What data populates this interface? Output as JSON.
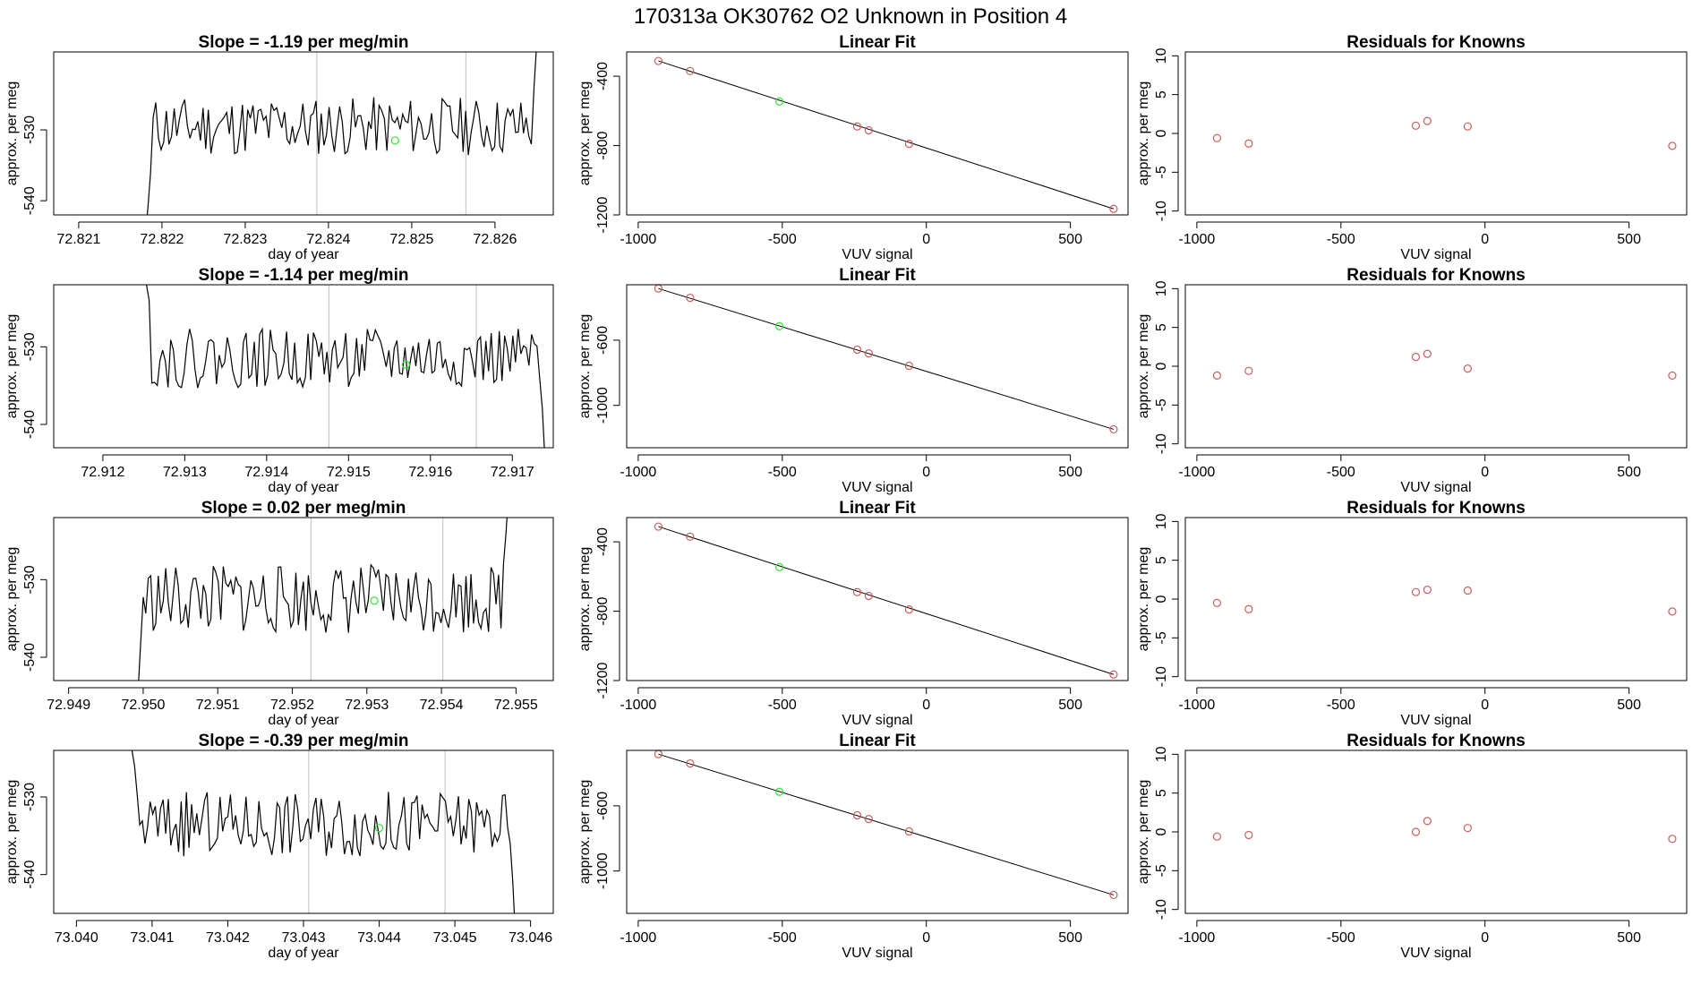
{
  "figure": {
    "title": "170313a      OK30762    O2 Unknown in Position  4",
    "colors": {
      "line": "#000000",
      "known_points": "#CD5C5C",
      "unknown_point": "#32E632",
      "vline": "#BEBEBE",
      "fit_line": "#000000"
    }
  },
  "chart_data": [
    {
      "panel": "row1-timeseries",
      "type": "line",
      "title": "Slope =  -1.19  per meg/min",
      "xlabel": "day of year",
      "ylabel": "approx. per meg",
      "xlim": [
        72.8207,
        72.8267
      ],
      "ylim": [
        -542,
        -519
      ],
      "xticks": [
        72.821,
        72.822,
        72.823,
        72.824,
        72.825,
        72.826
      ],
      "xtick_labels": [
        "72.821",
        "72.822",
        "72.823",
        "72.824",
        "72.825",
        "72.826"
      ],
      "yticks": [
        -540,
        -530
      ],
      "ytick_labels": [
        "-540",
        "-530"
      ],
      "t_start": 72.8218,
      "t_end": 72.8265,
      "level": -529.5,
      "noise": 2.6,
      "seed": 11,
      "ramp_start": [
        -545,
        -541,
        -536
      ],
      "ramp_end": [
        -532,
        -524,
        -518
      ],
      "vlines": [
        72.82386,
        72.82565
      ],
      "unknown_point": {
        "x": 72.8248,
        "y": -531.5
      }
    },
    {
      "panel": "row1-fit",
      "type": "scatter",
      "title": "Linear Fit",
      "xlabel": "VUV signal",
      "ylabel": "approx. per meg",
      "xlim": [
        -1040,
        700
      ],
      "ylim": [
        -1200,
        -260
      ],
      "xticks": [
        -1000,
        -500,
        0,
        500
      ],
      "xtick_labels": [
        "-1000",
        "-500",
        "0",
        "500"
      ],
      "yticks": [
        -1200,
        -800,
        -400
      ],
      "ytick_labels": [
        "-1200",
        "-800",
        "-400"
      ],
      "known_points": [
        {
          "x": -930,
          "y": -312
        },
        {
          "x": -820,
          "y": -370
        },
        {
          "x": -240,
          "y": -690
        },
        {
          "x": -200,
          "y": -712
        },
        {
          "x": -60,
          "y": -790
        },
        {
          "x": 650,
          "y": -1165
        }
      ],
      "unknown_point": {
        "x": -510,
        "y": -546
      },
      "fit_line": {
        "x": [
          -930,
          650
        ],
        "y": [
          -312,
          -1165
        ]
      }
    },
    {
      "panel": "row1-residuals",
      "type": "scatter",
      "title": "Residuals for Knowns",
      "xlabel": "VUV signal",
      "ylabel": "approx. per meg",
      "xlim": [
        -1040,
        700
      ],
      "ylim": [
        -10.5,
        10.5
      ],
      "xticks": [
        -1000,
        -500,
        0,
        500
      ],
      "xtick_labels": [
        "-1000",
        "-500",
        "0",
        "500"
      ],
      "yticks": [
        -10,
        -5,
        0,
        5,
        10
      ],
      "ytick_labels": [
        "-10",
        "-5",
        "0",
        "5",
        "10"
      ],
      "known_points": [
        {
          "x": -930,
          "y": -0.6
        },
        {
          "x": -820,
          "y": -1.3
        },
        {
          "x": -240,
          "y": 1.0
        },
        {
          "x": -200,
          "y": 1.6
        },
        {
          "x": -60,
          "y": 0.9
        },
        {
          "x": 650,
          "y": -1.6
        }
      ]
    },
    {
      "panel": "row2-timeseries",
      "type": "line",
      "title": "Slope =  -1.14  per meg/min",
      "xlabel": "day of year",
      "ylabel": "approx. per meg",
      "xlim": [
        72.9114,
        72.9175
      ],
      "ylim": [
        -543,
        -522
      ],
      "xticks": [
        72.912,
        72.913,
        72.914,
        72.915,
        72.916,
        72.917
      ],
      "xtick_labels": [
        "72.912",
        "72.913",
        "72.914",
        "72.915",
        "72.916",
        "72.917"
      ],
      "yticks": [
        -540,
        -530
      ],
      "ytick_labels": [
        "-540",
        "-530"
      ],
      "t_start": 72.9125,
      "t_end": 72.9174,
      "level": -531.5,
      "noise": 2.4,
      "seed": 22,
      "ramp_start": [
        -520,
        -522,
        -524
      ],
      "ramp_end": [
        -534,
        -538,
        -545
      ],
      "vlines": [
        72.91476,
        72.91656
      ],
      "unknown_point": {
        "x": 72.9157,
        "y": -532.3
      }
    },
    {
      "panel": "row2-fit",
      "type": "scatter",
      "title": "Linear Fit",
      "xlabel": "VUV signal",
      "ylabel": "approx. per meg",
      "xlim": [
        -1040,
        700
      ],
      "ylim": [
        -1260,
        -260
      ],
      "xticks": [
        -1000,
        -500,
        0,
        500
      ],
      "xtick_labels": [
        "-1000",
        "-500",
        "0",
        "500"
      ],
      "yticks": [
        -1000,
        -600
      ],
      "ytick_labels": [
        "-1000",
        "-600"
      ],
      "known_points": [
        {
          "x": -930,
          "y": -283
        },
        {
          "x": -820,
          "y": -340
        },
        {
          "x": -240,
          "y": -658
        },
        {
          "x": -200,
          "y": -681
        },
        {
          "x": -60,
          "y": -757
        },
        {
          "x": 650,
          "y": -1147
        }
      ],
      "unknown_point": {
        "x": -510,
        "y": -514
      },
      "fit_line": {
        "x": [
          -930,
          650
        ],
        "y": [
          -283,
          -1147
        ]
      }
    },
    {
      "panel": "row2-residuals",
      "type": "scatter",
      "title": "Residuals for Knowns",
      "xlabel": "VUV signal",
      "ylabel": "approx. per meg",
      "xlim": [
        -1040,
        700
      ],
      "ylim": [
        -10.5,
        10.5
      ],
      "xticks": [
        -1000,
        -500,
        0,
        500
      ],
      "xtick_labels": [
        "-1000",
        "-500",
        "0",
        "500"
      ],
      "yticks": [
        -10,
        -5,
        0,
        5,
        10
      ],
      "ytick_labels": [
        "-10",
        "-5",
        "0",
        "5",
        "10"
      ],
      "known_points": [
        {
          "x": -930,
          "y": -1.2
        },
        {
          "x": -820,
          "y": -0.6
        },
        {
          "x": -240,
          "y": 1.2
        },
        {
          "x": -200,
          "y": 1.6
        },
        {
          "x": -60,
          "y": -0.3
        },
        {
          "x": 650,
          "y": -1.2
        }
      ]
    },
    {
      "panel": "row3-timeseries",
      "type": "line",
      "title": "Slope =  0.02  per meg/min",
      "xlabel": "day of year",
      "ylabel": "approx. per meg",
      "xlim": [
        72.9488,
        72.9555
      ],
      "ylim": [
        -543,
        -522
      ],
      "xticks": [
        72.949,
        72.95,
        72.951,
        72.952,
        72.953,
        72.954,
        72.955
      ],
      "xtick_labels": [
        "72.949",
        "72.950",
        "72.951",
        "72.952",
        "72.953",
        "72.954",
        "72.955"
      ],
      "yticks": [
        -540,
        -530
      ],
      "ytick_labels": [
        "-540",
        "-530"
      ],
      "t_start": 72.9499,
      "t_end": 72.9549,
      "level": -532.5,
      "noise": 2.8,
      "seed": 33,
      "ramp_start": [
        -546,
        -544,
        -538
      ],
      "ramp_end": [
        -528,
        -524,
        -519
      ],
      "vlines": [
        72.95225,
        72.95402
      ],
      "unknown_point": {
        "x": 72.9531,
        "y": -532.7
      }
    },
    {
      "panel": "row3-fit",
      "type": "scatter",
      "title": "Linear Fit",
      "xlabel": "VUV signal",
      "ylabel": "approx. per meg",
      "xlim": [
        -1040,
        700
      ],
      "ylim": [
        -1200,
        -260
      ],
      "xticks": [
        -1000,
        -500,
        0,
        500
      ],
      "xtick_labels": [
        "-1000",
        "-500",
        "0",
        "500"
      ],
      "yticks": [
        -1200,
        -800,
        -400
      ],
      "ytick_labels": [
        "-1200",
        "-800",
        "-400"
      ],
      "known_points": [
        {
          "x": -930,
          "y": -312
        },
        {
          "x": -820,
          "y": -370
        },
        {
          "x": -240,
          "y": -690
        },
        {
          "x": -200,
          "y": -712
        },
        {
          "x": -60,
          "y": -790
        },
        {
          "x": 650,
          "y": -1165
        }
      ],
      "unknown_point": {
        "x": -510,
        "y": -546
      },
      "fit_line": {
        "x": [
          -930,
          650
        ],
        "y": [
          -312,
          -1165
        ]
      }
    },
    {
      "panel": "row3-residuals",
      "type": "scatter",
      "title": "Residuals for Knowns",
      "xlabel": "VUV signal",
      "ylabel": "approx. per meg",
      "xlim": [
        -1040,
        700
      ],
      "ylim": [
        -10.5,
        10.5
      ],
      "xticks": [
        -1000,
        -500,
        0,
        500
      ],
      "xtick_labels": [
        "-1000",
        "-500",
        "0",
        "500"
      ],
      "yticks": [
        -10,
        -5,
        0,
        5,
        10
      ],
      "ytick_labels": [
        "-10",
        "-5",
        "0",
        "5",
        "10"
      ],
      "known_points": [
        {
          "x": -930,
          "y": -0.5
        },
        {
          "x": -820,
          "y": -1.3
        },
        {
          "x": -240,
          "y": 0.9
        },
        {
          "x": -200,
          "y": 1.2
        },
        {
          "x": -60,
          "y": 1.1
        },
        {
          "x": 650,
          "y": -1.6
        }
      ]
    },
    {
      "panel": "row4-timeseries",
      "type": "line",
      "title": "Slope =  -0.39  per meg/min",
      "xlabel": "day of year",
      "ylabel": "approx. per meg",
      "xlim": [
        73.0397,
        73.0463
      ],
      "ylim": [
        -545,
        -524
      ],
      "xticks": [
        73.04,
        73.041,
        73.042,
        73.043,
        73.044,
        73.045,
        73.046
      ],
      "xtick_labels": [
        "73.040",
        "73.041",
        "73.042",
        "73.043",
        "73.044",
        "73.045",
        "73.046"
      ],
      "yticks": [
        -540,
        -530
      ],
      "ytick_labels": [
        "-540",
        "-530"
      ],
      "t_start": 73.0407,
      "t_end": 73.0458,
      "level": -533.5,
      "noise": 2.6,
      "seed": 44,
      "ramp_start": [
        -522,
        -524,
        -526
      ],
      "ramp_end": [
        -536,
        -541,
        -548
      ],
      "vlines": [
        73.04307,
        73.04487
      ],
      "unknown_point": {
        "x": 73.044,
        "y": -534.0
      }
    },
    {
      "panel": "row4-fit",
      "type": "scatter",
      "title": "Linear Fit",
      "xlabel": "VUV signal",
      "ylabel": "approx. per meg",
      "xlim": [
        -1040,
        700
      ],
      "ylim": [
        -1260,
        -260
      ],
      "xticks": [
        -1000,
        -500,
        0,
        500
      ],
      "xtick_labels": [
        "-1000",
        "-500",
        "0",
        "500"
      ],
      "yticks": [
        -1000,
        -600
      ],
      "ytick_labels": [
        "-1000",
        "-600"
      ],
      "known_points": [
        {
          "x": -930,
          "y": -283
        },
        {
          "x": -820,
          "y": -340
        },
        {
          "x": -240,
          "y": -658
        },
        {
          "x": -200,
          "y": -681
        },
        {
          "x": -60,
          "y": -757
        },
        {
          "x": 650,
          "y": -1147
        }
      ],
      "unknown_point": {
        "x": -510,
        "y": -514
      },
      "fit_line": {
        "x": [
          -930,
          650
        ],
        "y": [
          -283,
          -1147
        ]
      }
    },
    {
      "panel": "row4-residuals",
      "type": "scatter",
      "title": "Residuals for Knowns",
      "xlabel": "VUV signal",
      "ylabel": "approx. per meg",
      "xlim": [
        -1040,
        700
      ],
      "ylim": [
        -10.5,
        10.5
      ],
      "xticks": [
        -1000,
        -500,
        0,
        500
      ],
      "xtick_labels": [
        "-1000",
        "-500",
        "0",
        "500"
      ],
      "yticks": [
        -10,
        -5,
        0,
        5,
        10
      ],
      "ytick_labels": [
        "-10",
        "-5",
        "0",
        "5",
        "10"
      ],
      "known_points": [
        {
          "x": -930,
          "y": -0.6
        },
        {
          "x": -820,
          "y": -0.4
        },
        {
          "x": -240,
          "y": 0.0
        },
        {
          "x": -200,
          "y": 1.4
        },
        {
          "x": -60,
          "y": 0.5
        },
        {
          "x": 650,
          "y": -0.9
        }
      ]
    }
  ]
}
